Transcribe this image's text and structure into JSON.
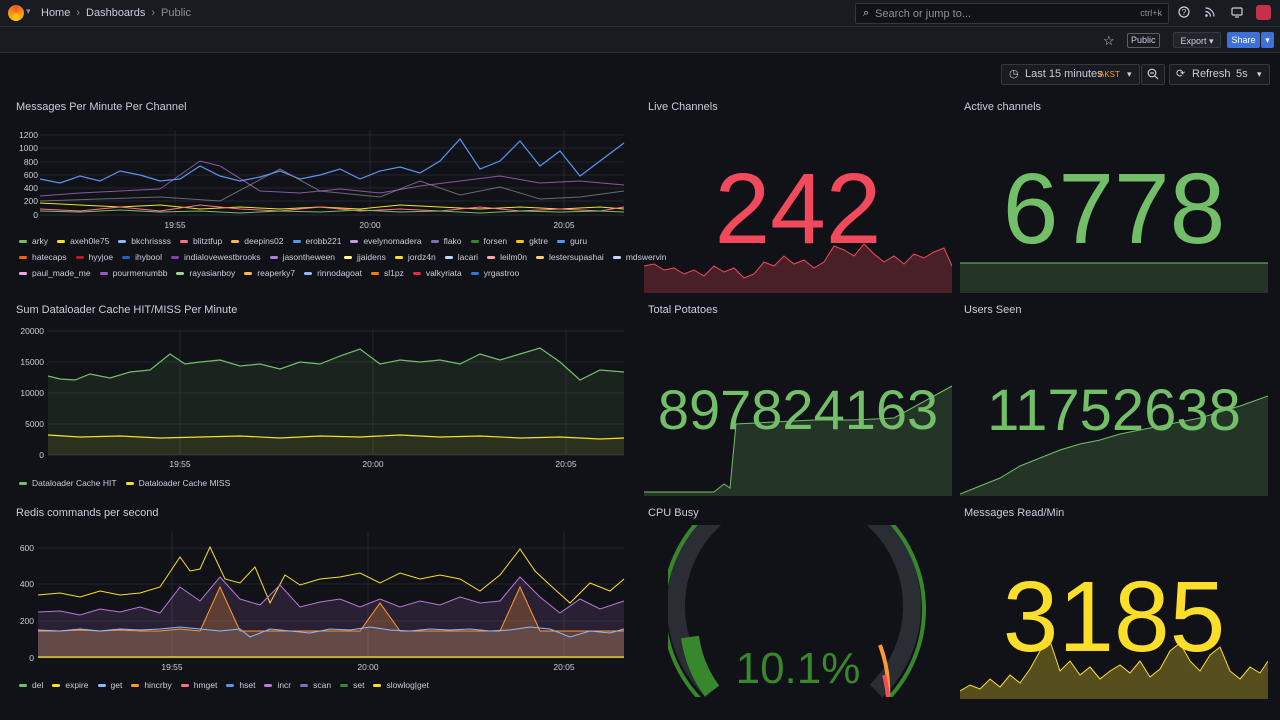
{
  "header": {
    "breadcrumb": [
      "Home",
      "Dashboards",
      "Public"
    ],
    "search_placeholder": "Search or jump to...",
    "search_shortcut": "ctrl+k",
    "public_tag": "Public",
    "export_label": "Export",
    "share_label": "Share"
  },
  "timepicker": {
    "range_label": "Last 15 minutes",
    "timezone": "AKST",
    "refresh_label": "Refresh",
    "interval": "5s"
  },
  "panels": {
    "messages": {
      "title": "Messages Per Minute Per Channel",
      "yticks": [
        "1200",
        "1000",
        "800",
        "600",
        "400",
        "200",
        "0"
      ],
      "xticks": [
        "19:55",
        "20:00",
        "20:05"
      ],
      "legend": [
        {
          "name": "arky",
          "color": "#73bf69"
        },
        {
          "name": "axeh0le75",
          "color": "#fade2a"
        },
        {
          "name": "bkchrissss",
          "color": "#8ab8ff"
        },
        {
          "name": "blitztfup",
          "color": "#ff7383"
        },
        {
          "name": "deepins02",
          "color": "#ffb357"
        },
        {
          "name": "erobb221",
          "color": "#5794f2"
        },
        {
          "name": "evelynomadera",
          "color": "#ca95e5"
        },
        {
          "name": "flako",
          "color": "#806eb7"
        },
        {
          "name": "forsen",
          "color": "#37872d"
        },
        {
          "name": "gktre",
          "color": "#f2cc0c"
        },
        {
          "name": "guru",
          "color": "#5794f2"
        },
        {
          "name": "hatecaps",
          "color": "#fa6400"
        },
        {
          "name": "hyyjoe",
          "color": "#c4162a"
        },
        {
          "name": "ihybool",
          "color": "#1f60c4"
        },
        {
          "name": "indialovewestbrooks",
          "color": "#8f3bb8"
        },
        {
          "name": "jasontheween",
          "color": "#b877d9"
        },
        {
          "name": "jjaidens",
          "color": "#fff899"
        },
        {
          "name": "jordz4n",
          "color": "#fade2a"
        },
        {
          "name": "lacari",
          "color": "#c0d8ff"
        },
        {
          "name": "leilm0n",
          "color": "#ffa6b0"
        },
        {
          "name": "lestersupashai",
          "color": "#ffcb7d"
        },
        {
          "name": "mdswervin",
          "color": "#c0d8ff"
        },
        {
          "name": "paul_made_me",
          "color": "#f2a6e6"
        },
        {
          "name": "pourmenumbb",
          "color": "#a352cc"
        },
        {
          "name": "rayasianboy",
          "color": "#96d98d"
        },
        {
          "name": "reaperky7",
          "color": "#ffb357"
        },
        {
          "name": "rinnodagoat",
          "color": "#8ab8ff"
        },
        {
          "name": "sl1pz",
          "color": "#ff780a"
        },
        {
          "name": "valkyriata",
          "color": "#e02f44"
        },
        {
          "name": "yrgastroo",
          "color": "#3274d9"
        }
      ]
    },
    "dataloader": {
      "title": "Sum Dataloader Cache HIT/MISS Per Minute",
      "yticks": [
        "20000",
        "15000",
        "10000",
        "5000",
        "0"
      ],
      "xticks": [
        "19:55",
        "20:00",
        "20:05"
      ],
      "legend": [
        {
          "name": "Dataloader Cache HIT",
          "color": "#73bf69"
        },
        {
          "name": "Dataloader Cache MISS",
          "color": "#fade2a"
        }
      ]
    },
    "redis": {
      "title": "Redis commands per second",
      "yticks": [
        "600",
        "400",
        "200",
        "0"
      ],
      "xticks": [
        "19:55",
        "20:00",
        "20:05"
      ],
      "legend": [
        {
          "name": "del",
          "color": "#73bf69"
        },
        {
          "name": "expire",
          "color": "#fade2a"
        },
        {
          "name": "get",
          "color": "#8ab8ff"
        },
        {
          "name": "hincrby",
          "color": "#ff9830"
        },
        {
          "name": "hmget",
          "color": "#ff7383"
        },
        {
          "name": "hset",
          "color": "#5794f2"
        },
        {
          "name": "incr",
          "color": "#b877d9"
        },
        {
          "name": "scan",
          "color": "#806eb7"
        },
        {
          "name": "set",
          "color": "#37872d"
        },
        {
          "name": "slowlog|get",
          "color": "#fade2a"
        }
      ]
    },
    "live_channels": {
      "title": "Live Channels",
      "value": "242",
      "color": "#f2495c"
    },
    "active_channels": {
      "title": "Active channels",
      "value": "6778",
      "color": "#73bf69"
    },
    "total_potatoes": {
      "title": "Total Potatoes",
      "value": "897824163",
      "color": "#73bf69"
    },
    "users_seen": {
      "title": "Users Seen",
      "value": "11752638",
      "color": "#73bf69"
    },
    "cpu_busy": {
      "title": "CPU Busy",
      "value": "10.1%",
      "percent": 10.1,
      "color": "#37872d"
    },
    "messages_read": {
      "title": "Messages Read/Min",
      "value": "3185",
      "color": "#fade2a"
    }
  },
  "colors": {
    "background": "#111217",
    "panel": "#181b1f",
    "accent": "#3d71d9"
  }
}
